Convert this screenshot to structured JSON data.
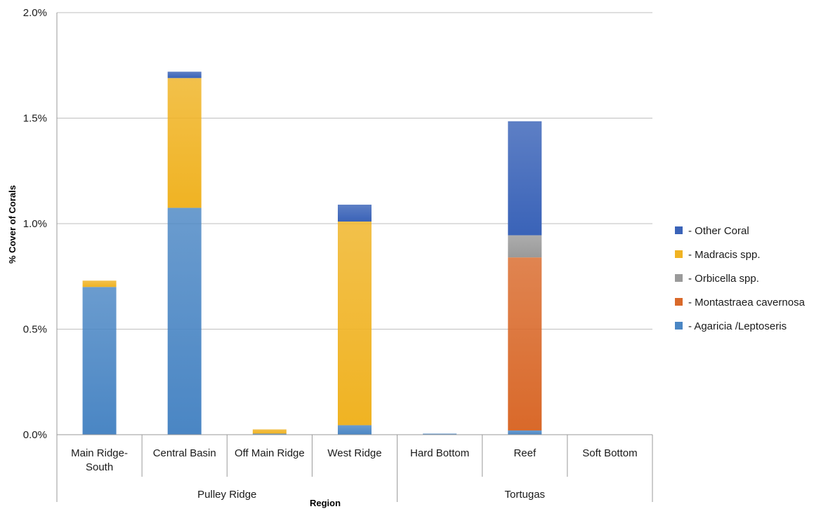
{
  "chart_data": {
    "type": "bar",
    "stacked": true,
    "ylabel": "% Cover of Corals",
    "xlabel": "Region",
    "ylim": [
      0,
      2.0
    ],
    "y_ticks": [
      "0.0%",
      "0.5%",
      "1.0%",
      "1.5%",
      "2.0%"
    ],
    "y_tick_values": [
      0,
      0.5,
      1.0,
      1.5,
      2.0
    ],
    "grid": true,
    "legend_position": "right",
    "categories": [
      "Main Ridge-\nSouth",
      "Central Basin",
      "Off Main Ridge",
      "West Ridge",
      "Hard Bottom",
      "Reef",
      "Soft Bottom"
    ],
    "category_lines": [
      [
        "Main Ridge-",
        "South"
      ],
      [
        "Central Basin"
      ],
      [
        "Off Main Ridge"
      ],
      [
        "West Ridge"
      ],
      [
        "Hard Bottom"
      ],
      [
        "Reef"
      ],
      [
        "Soft Bottom"
      ]
    ],
    "groups": [
      {
        "label": "Pulley Ridge",
        "categories": [
          0,
          1,
          2,
          3
        ]
      },
      {
        "label": "Tortugas",
        "categories": [
          4,
          5,
          6
        ]
      }
    ],
    "series": [
      {
        "name": "- Agaricia /Leptoseris",
        "color": "#4a86c4",
        "values": [
          0.7,
          1.075,
          0.005,
          0.045,
          0.005,
          0.02,
          0
        ]
      },
      {
        "name": "- Montastraea cavernosa",
        "color": "#d9692a",
        "values": [
          0,
          0,
          0,
          0,
          0,
          0.82,
          0
        ]
      },
      {
        "name": "- Orbicella spp.",
        "color": "#9a9a9a",
        "values": [
          0,
          0,
          0,
          0,
          0,
          0.105,
          0
        ]
      },
      {
        "name": "- Madracis spp.",
        "color": "#f0b323",
        "values": [
          0.03,
          0.615,
          0.02,
          0.965,
          0,
          0,
          0
        ]
      },
      {
        "name": "- Other Coral",
        "color": "#3a63b8",
        "values": [
          0,
          0.03,
          0,
          0.08,
          0,
          0.54,
          0
        ]
      }
    ],
    "legend_order": [
      4,
      3,
      2,
      1,
      0
    ]
  }
}
